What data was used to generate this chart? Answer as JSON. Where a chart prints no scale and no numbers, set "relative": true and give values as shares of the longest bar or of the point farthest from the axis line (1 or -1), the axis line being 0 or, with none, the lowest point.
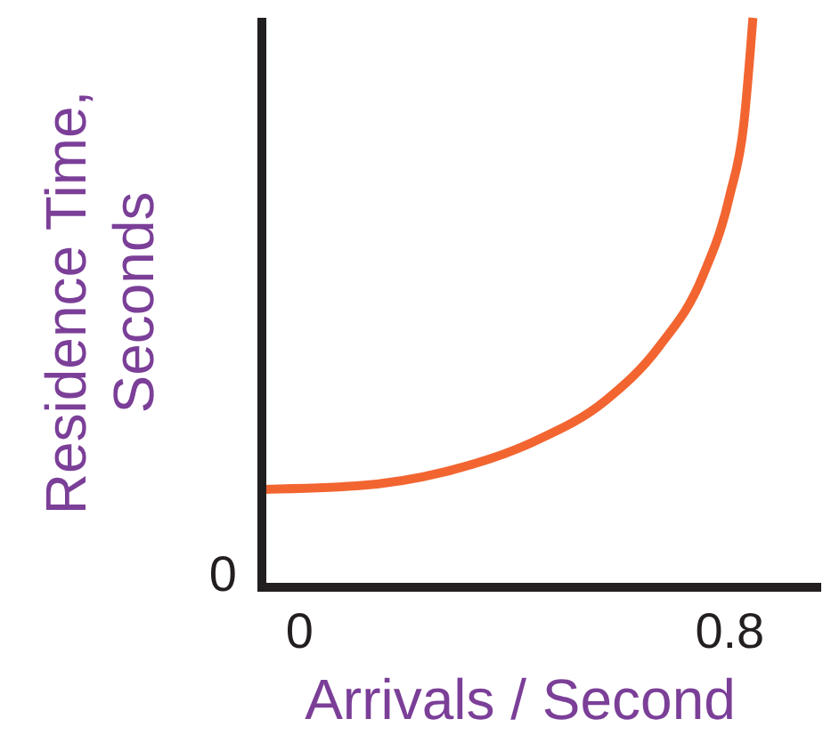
{
  "chart_data": {
    "type": "line",
    "xlabel": "Arrivals / Second",
    "ylabel": "Residence Time,\nSeconds",
    "relative": true,
    "x": [
      -0.066,
      0.106,
      0.271,
      0.436,
      0.569,
      0.668,
      0.75,
      0.8,
      0.826,
      0.843
    ],
    "series": [
      {
        "color": "#f26531",
        "values": [
          0.172,
          0.178,
          0.203,
          0.256,
          0.328,
          0.422,
          0.547,
          0.688,
          0.813,
          1
        ]
      }
    ],
    "xlim": [
      -0.07,
      0.97
    ],
    "xticks": [
      0,
      0.8
    ],
    "annotations": [
      "0"
    ]
  }
}
